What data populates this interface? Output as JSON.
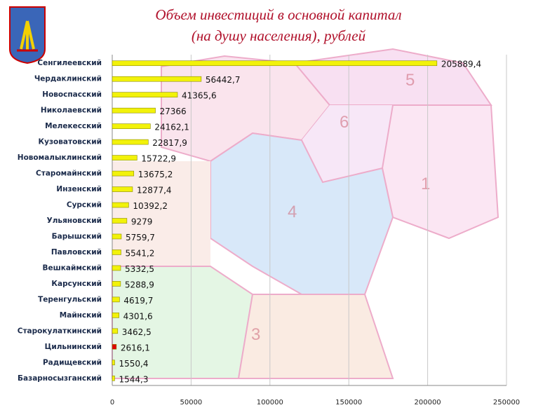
{
  "chart_data": {
    "type": "bar",
    "orientation": "horizontal",
    "title": [
      "Объем инвестиций в основной  капитал",
      "(на душу населения),  рублей"
    ],
    "categories": [
      "Сенгилеевский",
      "Чердаклинский",
      "Новоспасский",
      "Николаевский",
      "Мелекесский",
      "Кузоватовский",
      "Новомалыклинский",
      "Старомайнский",
      "Инзенский",
      "Сурский",
      "Ульяновский",
      "Барышский",
      "Павловский",
      "Вешкаймский",
      "Карсунский",
      "Теренгульский",
      "Майнский",
      "Старокулаткинский",
      "Цильнинский",
      "Радищевский",
      "Базарносызганский"
    ],
    "values": [
      205889.4,
      56442.7,
      41365.6,
      27366,
      24162.1,
      22817.9,
      15722.9,
      13675.2,
      12877.4,
      10392.2,
      9279,
      5759.7,
      5541.2,
      5332.5,
      5288.9,
      4619.7,
      4301.6,
      3462.5,
      2616.1,
      1550.4,
      1544.3
    ],
    "value_labels": [
      "205889,4",
      "56442,7",
      "41365,6",
      "27366",
      "24162,1",
      "22817,9",
      "15722,9",
      "13675,2",
      "12877,4",
      "10392,2",
      "9279",
      "5759,7",
      "5541,2",
      "5332,5",
      "5288,9",
      "4619,7",
      "4301,6",
      "3462,5",
      "2616,1",
      "1550,4",
      "1544,3"
    ],
    "colors": [
      "#f2f20a",
      "#f2f20a",
      "#f2f20a",
      "#f2f20a",
      "#f2f20a",
      "#f2f20a",
      "#f2f20a",
      "#f2f20a",
      "#f2f20a",
      "#f2f20a",
      "#f2f20a",
      "#f2f20a",
      "#f2f20a",
      "#f2f20a",
      "#f2f20a",
      "#f2f20a",
      "#f2f20a",
      "#f2f20a",
      "#e00000",
      "#f2f20a",
      "#f2f20a"
    ],
    "xlim": [
      0,
      250000
    ],
    "xticks": [
      0,
      50000,
      100000,
      150000,
      200000,
      250000
    ],
    "grid": true
  }
}
